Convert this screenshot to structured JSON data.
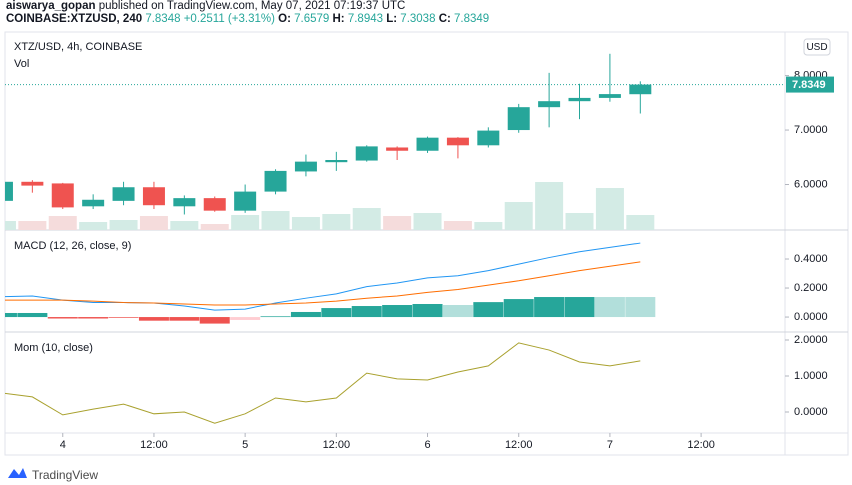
{
  "header": {
    "author": "aiswarya_gopan",
    "published": "published on TradingView.com, May 07, 2021 07:19:37 UTC",
    "symbol": "COINBASE:XTZUSD, 240",
    "last": "7.8348",
    "change": "+0.2511 (+3.31%)",
    "o": "O:",
    "h": "H:",
    "l": "L:",
    "c": "C:",
    "currency": "USD"
  },
  "footer": {
    "brand": "TradingView"
  },
  "chart_data": [
    {
      "type": "candlestick",
      "title": "XTZ/USD, 4h, COINBASE",
      "subtitle": "Vol",
      "x": [
        0,
        1,
        2,
        3,
        4,
        5,
        6,
        7,
        8,
        9,
        10,
        11,
        12,
        13,
        14,
        15,
        16,
        17,
        18,
        19,
        20,
        21
      ],
      "open": [
        5.7,
        6.05,
        6.02,
        5.6,
        5.7,
        5.95,
        5.6,
        5.75,
        5.52,
        5.87,
        6.24,
        6.41,
        6.44,
        6.68,
        6.62,
        6.86,
        6.72,
        7.0,
        7.42,
        7.53,
        7.59,
        7.6579
      ],
      "high": [
        6.1,
        6.08,
        6.03,
        5.82,
        6.05,
        6.05,
        5.8,
        5.78,
        6.0,
        6.28,
        6.55,
        6.6,
        6.72,
        6.7,
        6.88,
        6.87,
        7.05,
        7.48,
        8.05,
        7.85,
        8.4,
        7.8943
      ],
      "low": [
        5.65,
        5.85,
        5.55,
        5.55,
        5.62,
        5.55,
        5.45,
        5.5,
        5.48,
        5.82,
        6.15,
        6.25,
        6.42,
        6.45,
        6.58,
        6.48,
        6.68,
        6.95,
        7.05,
        7.2,
        7.52,
        7.3038
      ],
      "close": [
        6.05,
        5.98,
        5.58,
        5.72,
        5.95,
        5.62,
        5.75,
        5.52,
        5.87,
        6.25,
        6.42,
        6.45,
        6.7,
        6.62,
        6.86,
        6.72,
        6.99,
        7.42,
        7.53,
        7.59,
        7.66,
        7.8349
      ],
      "volume": [
        9,
        9,
        14,
        8,
        10,
        14,
        9,
        6,
        15,
        19,
        13,
        16,
        22,
        14,
        17,
        9,
        8,
        28,
        48,
        17,
        42,
        15
      ],
      "up_color": "#26a69a",
      "down_color": "#ef5350",
      "volume_up_color": "#d3ebe5",
      "volume_down_color": "#f5dcdc",
      "xlim": [
        0.1,
        25.76
      ],
      "xticks": [
        {
          "value": 2,
          "label": "4"
        },
        {
          "value": 5,
          "label": "12:00"
        },
        {
          "value": 8,
          "label": "5"
        },
        {
          "value": 11,
          "label": "12:00"
        },
        {
          "value": 14,
          "label": "6"
        },
        {
          "value": 17,
          "label": "12:00"
        },
        {
          "value": 20,
          "label": "7"
        },
        {
          "value": 23,
          "label": "12:00"
        }
      ],
      "ylim": [
        5.165,
        8.8
      ],
      "yticks": [
        {
          "value": 6,
          "label": "6.0000"
        },
        {
          "value": 7,
          "label": "7.0000"
        },
        {
          "value": 8,
          "label": "8.0000"
        }
      ],
      "grid": false
    },
    {
      "type": "macd",
      "title": "MACD (12, 26, close, 9)",
      "ylim": [
        -0.103,
        0.6
      ],
      "yticks": [
        {
          "value": 0,
          "label": "0.0000"
        },
        {
          "value": 0.2,
          "label": "0.2000"
        },
        {
          "value": 0.4,
          "label": "0.4000"
        }
      ],
      "series": [
        {
          "color": "#2196f3",
          "values": [
            0.14,
            0.145,
            0.117,
            0.1,
            0.1,
            0.097,
            0.076,
            0.048,
            0.055,
            0.097,
            0.13,
            0.16,
            0.21,
            0.235,
            0.27,
            0.285,
            0.32,
            0.365,
            0.41,
            0.45,
            0.48,
            0.51
          ]
        },
        {
          "color": "#ff6d00",
          "values": [
            0.117,
            0.117,
            0.117,
            0.11,
            0.1,
            0.097,
            0.09,
            0.083,
            0.083,
            0.09,
            0.097,
            0.11,
            0.13,
            0.145,
            0.17,
            0.19,
            0.22,
            0.25,
            0.285,
            0.32,
            0.35,
            0.38
          ]
        }
      ],
      "histogram": {
        "values": [
          0.028,
          0.028,
          -0.01,
          -0.01,
          -0.005,
          -0.025,
          -0.025,
          -0.045,
          -0.02,
          0.005,
          0.035,
          0.062,
          0.076,
          0.083,
          0.09,
          0.083,
          0.103,
          0.124,
          0.138,
          0.138,
          0.138,
          0.138
        ],
        "colors": [
          "#26a69a",
          "#26a69a",
          "#ef5350",
          "#ef5350",
          "#ef5350",
          "#ef5350",
          "#ef5350",
          "#ef5350",
          "#ffcdd2",
          "#26a69a",
          "#26a69a",
          "#26a69a",
          "#26a69a",
          "#26a69a",
          "#26a69a",
          "#b2dfdb",
          "#26a69a",
          "#26a69a",
          "#26a69a",
          "#26a69a",
          "#b2dfdb",
          "#b2dfdb"
        ]
      },
      "grid": false
    },
    {
      "type": "line",
      "title": "Mom (10, close)",
      "color": "#a9a12e",
      "values": [
        0.53,
        0.42,
        -0.08,
        0.08,
        0.22,
        -0.05,
        0,
        -0.31,
        -0.05,
        0.39,
        0.28,
        0.39,
        1.08,
        0.92,
        0.89,
        1.11,
        1.28,
        1.92,
        1.72,
        1.39,
        1.28,
        1.42
      ],
      "ylim": [
        -0.583,
        2.222
      ],
      "yticks": [
        {
          "value": 0,
          "label": "0.0000"
        },
        {
          "value": 1,
          "label": "1.0000"
        },
        {
          "value": 2,
          "label": "2.0000"
        }
      ],
      "grid": false
    }
  ]
}
